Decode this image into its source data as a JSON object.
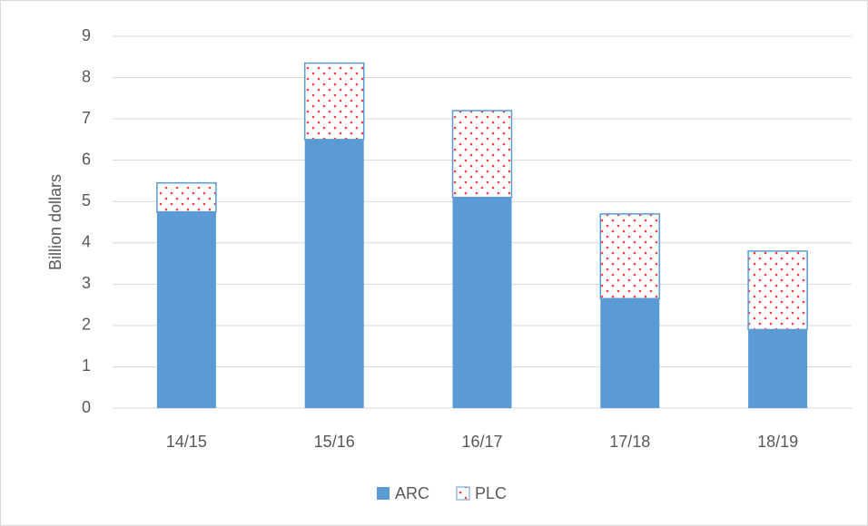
{
  "chart_data": {
    "type": "stacked-bar",
    "y_label": "Billion dollars",
    "categories": [
      "14/15",
      "15/16",
      "16/17",
      "17/18",
      "18/19"
    ],
    "series": [
      {
        "name": "ARC",
        "color": "#5b9bd5",
        "values": [
          4.75,
          6.5,
          5.1,
          2.65,
          1.9
        ]
      },
      {
        "name": "PLC",
        "color": "#ff3b3b",
        "values": [
          0.7,
          1.85,
          2.1,
          2.05,
          1.9
        ]
      }
    ],
    "ylim": [
      0,
      9
    ],
    "yticks": [
      0,
      1,
      2,
      3,
      4,
      5,
      6,
      7,
      8,
      9
    ],
    "grid": true,
    "legend": "bottom"
  }
}
